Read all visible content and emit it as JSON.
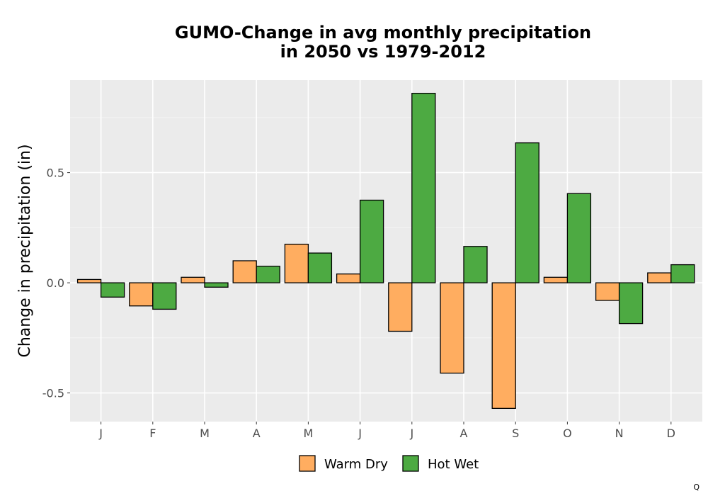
{
  "chart_data": {
    "type": "bar",
    "title_lines": [
      "GUMO-Change in avg monthly precipitation",
      "in 2050 vs 1979-2012"
    ],
    "xlabel": "",
    "ylabel": "Change in precipitation (in)",
    "categories": [
      "J",
      "F",
      "M",
      "A",
      "M",
      "J",
      "J",
      "A",
      "S",
      "O",
      "N",
      "D"
    ],
    "yticks": [
      -0.5,
      0.0,
      0.5
    ],
    "ytick_labels": [
      "-0.5",
      "0.0",
      "0.5"
    ],
    "ylim": [
      -0.63,
      0.92
    ],
    "grid": true,
    "legend_position": "bottom",
    "series": [
      {
        "name": "Warm Dry",
        "color": "#FFAD60",
        "values": [
          0.015,
          -0.105,
          0.025,
          0.1,
          0.175,
          0.04,
          -0.22,
          -0.41,
          -0.57,
          0.025,
          -0.08,
          0.045
        ]
      },
      {
        "name": "Hot Wet",
        "color": "#4DAA42",
        "values": [
          -0.065,
          -0.12,
          -0.02,
          0.075,
          0.135,
          0.375,
          0.86,
          0.165,
          0.635,
          0.405,
          -0.185,
          0.082
        ]
      }
    ],
    "corner_mark": "Q"
  }
}
